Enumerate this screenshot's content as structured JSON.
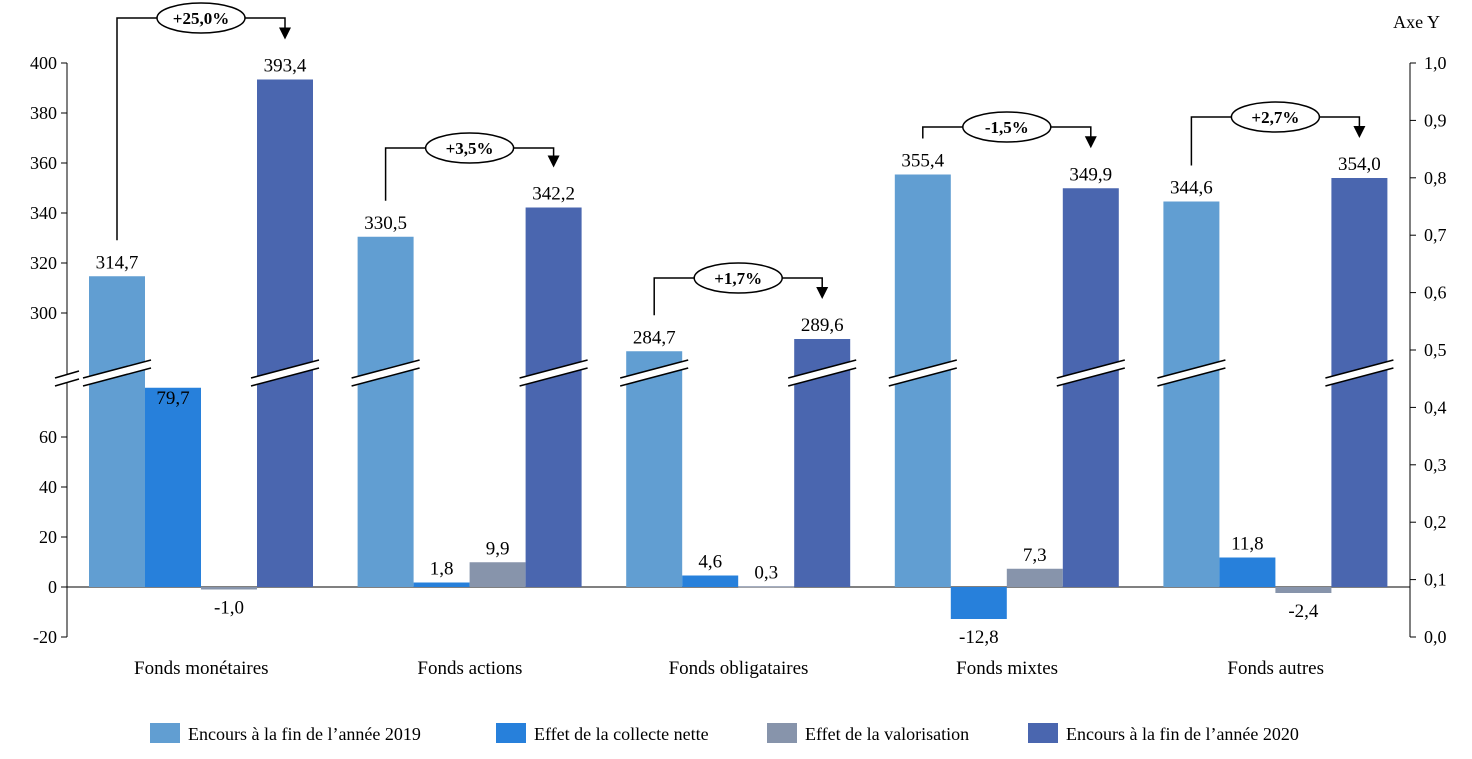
{
  "chart_data": {
    "type": "bar",
    "categories": [
      "Fonds monétaires",
      "Fonds actions",
      "Fonds obligataires",
      "Fonds mixtes",
      "Fonds autres"
    ],
    "series": [
      {
        "name": "Encours à la fin de l’année 2019",
        "values": [
          314.7,
          330.5,
          284.7,
          355.4,
          344.6
        ],
        "labels": [
          "314,7",
          "330,5",
          "284,7",
          "355,4",
          "344,6"
        ],
        "color": "#619ED2"
      },
      {
        "name": "Effet de la collecte nette",
        "values": [
          79.7,
          1.8,
          4.6,
          -12.8,
          11.8
        ],
        "labels": [
          "79,7",
          "1,8",
          "4,6",
          "-12,8",
          "11,8"
        ],
        "color": "#2780DB"
      },
      {
        "name": "Effet de la valorisation",
        "values": [
          -1.0,
          9.9,
          0.3,
          7.3,
          -2.4
        ],
        "labels": [
          "-1,0",
          "9,9",
          "0,3",
          "7,3",
          "-2,4"
        ],
        "color": "#8794AB"
      },
      {
        "name": "Encours à la fin de l’année 2020",
        "values": [
          393.4,
          342.2,
          289.6,
          349.9,
          354.0
        ],
        "labels": [
          "393,4",
          "342,2",
          "289,6",
          "349,9",
          "354,0"
        ],
        "color": "#4A66AF"
      }
    ],
    "annotations": [
      "+25,0%",
      "+3,5%",
      "+1,7%",
      "-1,5%",
      "+2,7%"
    ],
    "y_axis_left": {
      "broken": true,
      "lower_range": [
        -20,
        60
      ],
      "upper_range": [
        300,
        400
      ],
      "ticks_lower": [
        "-20",
        "0",
        "20",
        "40",
        "60"
      ],
      "ticks_upper": [
        "300",
        "320",
        "340",
        "360",
        "380",
        "400"
      ]
    },
    "y_axis_right": {
      "title": "Axe Y",
      "range": [
        0,
        1
      ],
      "ticks": [
        "0,0",
        "0,1",
        "0,2",
        "0,3",
        "0,4",
        "0,5",
        "0,6",
        "0,7",
        "0,8",
        "0,9",
        "1,0"
      ]
    },
    "grid": false,
    "legend_position": "bottom"
  }
}
